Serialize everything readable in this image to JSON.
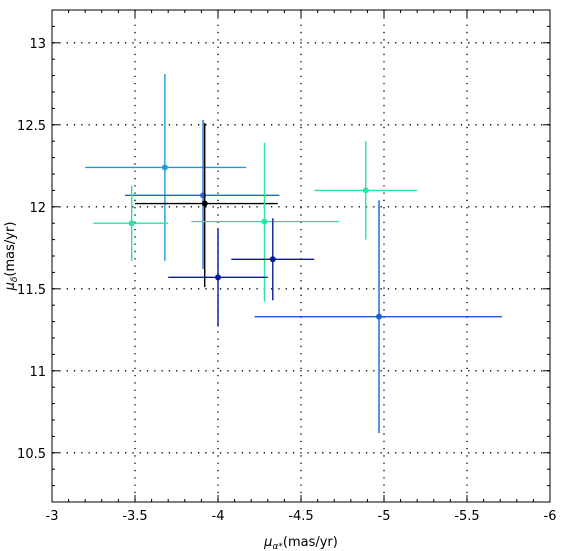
{
  "chart_data": {
    "type": "scatter",
    "title": "",
    "xlabel": {
      "symbol": "μ",
      "subscript": "α*",
      "unit": "(mas/yr)"
    },
    "ylabel": {
      "symbol": "μ",
      "subscript": "δ",
      "unit": "(mas/yr)"
    },
    "xlim": [
      -3,
      -6
    ],
    "ylim": [
      10.2,
      13.2
    ],
    "x_inverted": true,
    "x_ticks": [
      "-3",
      "-3.5",
      "-4",
      "-4.5",
      "-5",
      "-5.5",
      "-6"
    ],
    "x_tick_values": [
      -3,
      -3.5,
      -4,
      -4.5,
      -5,
      -5.5,
      -6
    ],
    "y_ticks": [
      "10.5",
      "11",
      "11.5",
      "12",
      "12.5",
      "13"
    ],
    "y_tick_values": [
      10.5,
      11,
      11.5,
      12,
      12.5,
      13
    ],
    "grid": true,
    "legend": "none",
    "points": [
      {
        "x": -3.68,
        "y": 12.24,
        "x_err": [
          0.48,
          0.49
        ],
        "y_err": [
          0.57,
          0.57
        ],
        "color": "#1e9be0"
      },
      {
        "x": -3.91,
        "y": 12.07,
        "x_err": [
          0.47,
          0.46
        ],
        "y_err": [
          0.45,
          0.46
        ],
        "color": "#1a6ad8"
      },
      {
        "x": -3.92,
        "y": 12.02,
        "x_err": [
          0.42,
          0.44
        ],
        "y_err": [
          0.51,
          0.49
        ],
        "color": "#000000"
      },
      {
        "x": -3.48,
        "y": 11.9,
        "x_err": [
          0.23,
          0.22
        ],
        "y_err": [
          0.23,
          0.23
        ],
        "color": "#2de3a0"
      },
      {
        "x": -4.28,
        "y": 11.91,
        "x_err": [
          0.44,
          0.45
        ],
        "y_err": [
          0.49,
          0.48
        ],
        "color": "#2de3a0"
      },
      {
        "x": -4.89,
        "y": 12.1,
        "x_err": [
          0.31,
          0.31
        ],
        "y_err": [
          0.3,
          0.3
        ],
        "color": "#2de3a0"
      },
      {
        "x": -4.0,
        "y": 11.57,
        "x_err": [
          0.3,
          0.3
        ],
        "y_err": [
          0.3,
          0.3
        ],
        "color": "#0a1aa0"
      },
      {
        "x": -4.33,
        "y": 11.68,
        "x_err": [
          0.25,
          0.25
        ],
        "y_err": [
          0.25,
          0.25
        ],
        "color": "#0a1aa0"
      },
      {
        "x": -4.97,
        "y": 11.33,
        "x_err": [
          0.75,
          0.74
        ],
        "y_err": [
          0.71,
          0.71
        ],
        "color": "#1a5fd0"
      }
    ]
  }
}
